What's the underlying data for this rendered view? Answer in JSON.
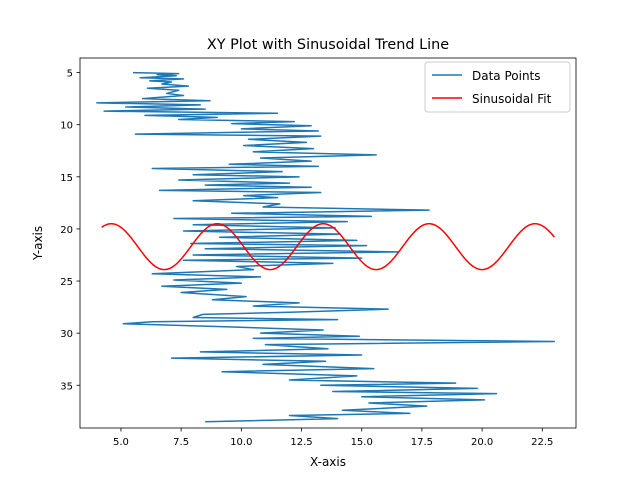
{
  "chart_data": {
    "type": "line",
    "title": "XY Plot with Sinusoidal Trend Line",
    "xlabel": "X-axis",
    "ylabel": "Y-axis",
    "xlim": [
      3.3,
      23.9
    ],
    "ylim": [
      39.1,
      3.6
    ],
    "y_inverted": true,
    "grid": false,
    "legend_position": "upper right",
    "x_ticks": [
      5.0,
      7.5,
      10.0,
      12.5,
      15.0,
      17.5,
      20.0,
      22.5
    ],
    "x_tick_labels": [
      "5.0",
      "7.5",
      "10.0",
      "12.5",
      "15.0",
      "17.5",
      "20.0",
      "22.5"
    ],
    "y_ticks": [
      5,
      10,
      15,
      20,
      25,
      30,
      35
    ],
    "y_tick_labels": [
      "5",
      "10",
      "15",
      "20",
      "25",
      "30",
      "35"
    ],
    "series": [
      {
        "name": "Data Points",
        "color": "#1f77b4",
        "points": [
          [
            5.5,
            5.0
          ],
          [
            7.4,
            5.1
          ],
          [
            6.5,
            5.2
          ],
          [
            7.3,
            5.3
          ],
          [
            5.8,
            5.5
          ],
          [
            7.6,
            5.6
          ],
          [
            6.2,
            5.8
          ],
          [
            7.1,
            5.9
          ],
          [
            6.7,
            6.1
          ],
          [
            7.8,
            6.3
          ],
          [
            6.1,
            6.5
          ],
          [
            7.4,
            6.7
          ],
          [
            6.9,
            7.0
          ],
          [
            7.6,
            7.2
          ],
          [
            5.9,
            7.5
          ],
          [
            8.7,
            7.7
          ],
          [
            4.0,
            7.9
          ],
          [
            8.3,
            8.1
          ],
          [
            5.2,
            8.3
          ],
          [
            8.5,
            8.5
          ],
          [
            4.3,
            8.7
          ],
          [
            11.5,
            8.9
          ],
          [
            6.0,
            9.1
          ],
          [
            9.0,
            9.3
          ],
          [
            7.4,
            9.5
          ],
          [
            12.2,
            9.7
          ],
          [
            9.6,
            9.9
          ],
          [
            12.9,
            10.1
          ],
          [
            10.0,
            10.4
          ],
          [
            13.2,
            10.6
          ],
          [
            5.6,
            10.9
          ],
          [
            13.3,
            11.1
          ],
          [
            10.3,
            11.4
          ],
          [
            12.7,
            11.7
          ],
          [
            10.1,
            12.0
          ],
          [
            13.0,
            12.3
          ],
          [
            10.5,
            12.6
          ],
          [
            15.6,
            12.9
          ],
          [
            10.8,
            13.2
          ],
          [
            12.9,
            13.5
          ],
          [
            9.5,
            13.8
          ],
          [
            13.2,
            14.0
          ],
          [
            6.3,
            14.2
          ],
          [
            11.7,
            14.5
          ],
          [
            8.0,
            14.8
          ],
          [
            12.4,
            15.0
          ],
          [
            7.4,
            15.3
          ],
          [
            12.0,
            15.6
          ],
          [
            8.5,
            15.8
          ],
          [
            12.9,
            16.0
          ],
          [
            6.6,
            16.3
          ],
          [
            13.3,
            16.5
          ],
          [
            10.1,
            16.8
          ],
          [
            11.5,
            17.0
          ],
          [
            8.0,
            17.3
          ],
          [
            11.6,
            17.6
          ],
          [
            10.9,
            17.9
          ],
          [
            17.8,
            18.2
          ],
          [
            9.6,
            18.5
          ],
          [
            15.4,
            18.8
          ],
          [
            7.2,
            19.0
          ],
          [
            14.4,
            19.3
          ],
          [
            8.0,
            19.6
          ],
          [
            13.9,
            19.9
          ],
          [
            7.6,
            20.2
          ],
          [
            14.1,
            20.5
          ],
          [
            9.1,
            20.8
          ],
          [
            14.8,
            21.1
          ],
          [
            7.9,
            21.4
          ],
          [
            15.2,
            21.6
          ],
          [
            8.5,
            21.9
          ],
          [
            16.5,
            22.2
          ],
          [
            8.0,
            22.5
          ],
          [
            15.0,
            22.8
          ],
          [
            7.6,
            23.0
          ],
          [
            13.8,
            23.3
          ],
          [
            9.8,
            23.6
          ],
          [
            10.5,
            23.9
          ],
          [
            6.3,
            24.3
          ],
          [
            10.8,
            24.6
          ],
          [
            7.2,
            24.9
          ],
          [
            10.0,
            25.2
          ],
          [
            6.7,
            25.5
          ],
          [
            9.4,
            25.8
          ],
          [
            7.5,
            26.1
          ],
          [
            10.2,
            26.5
          ],
          [
            8.8,
            26.8
          ],
          [
            12.4,
            27.1
          ],
          [
            10.5,
            27.4
          ],
          [
            16.1,
            27.7
          ],
          [
            12.0,
            28.0
          ],
          [
            8.4,
            28.2
          ],
          [
            8.0,
            28.5
          ],
          [
            14.0,
            28.7
          ],
          [
            6.3,
            28.9
          ],
          [
            5.1,
            29.1
          ],
          [
            9.5,
            29.4
          ],
          [
            13.4,
            29.7
          ],
          [
            10.8,
            30.0
          ],
          [
            14.9,
            30.3
          ],
          [
            10.5,
            30.5
          ],
          [
            23.0,
            30.8
          ],
          [
            11.0,
            31.1
          ],
          [
            13.6,
            31.5
          ],
          [
            8.3,
            31.8
          ],
          [
            15.0,
            32.1
          ],
          [
            7.1,
            32.4
          ],
          [
            13.5,
            32.7
          ],
          [
            10.9,
            33.0
          ],
          [
            15.5,
            33.4
          ],
          [
            9.2,
            33.7
          ],
          [
            14.8,
            34.1
          ],
          [
            12.0,
            34.5
          ],
          [
            18.9,
            34.8
          ],
          [
            13.3,
            35.0
          ],
          [
            19.8,
            35.3
          ],
          [
            13.8,
            35.6
          ],
          [
            20.6,
            35.8
          ],
          [
            15.0,
            36.1
          ],
          [
            20.1,
            36.4
          ],
          [
            15.3,
            36.7
          ],
          [
            17.7,
            37.0
          ],
          [
            14.2,
            37.4
          ],
          [
            17.0,
            37.7
          ],
          [
            12.0,
            37.9
          ],
          [
            14.0,
            38.2
          ],
          [
            8.5,
            38.5
          ]
        ]
      },
      {
        "name": "Sinusoidal Fit",
        "color": "#ff0000",
        "function": "y = 21.7 + 2.2 * sin(2*pi*(x - 5.7)/4.4)",
        "x_range": [
          4.2,
          23.0
        ]
      }
    ]
  }
}
